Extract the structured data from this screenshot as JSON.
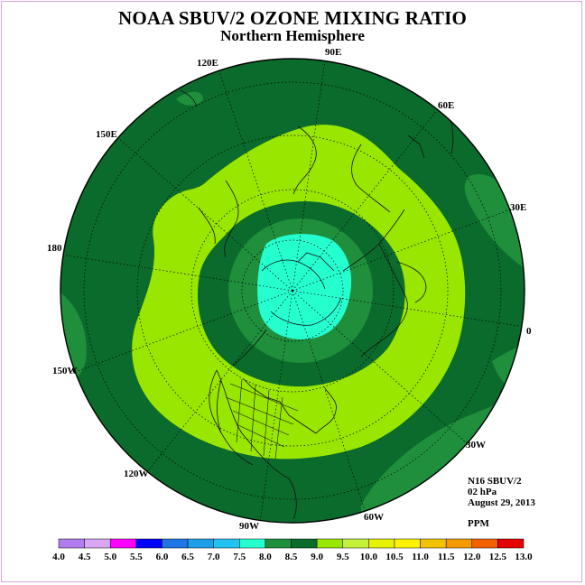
{
  "title": "NOAA SBUV/2 OZONE MIXING RATIO",
  "subtitle": "Northern Hemisphere",
  "info": {
    "instrument": "N16 SBUV/2",
    "level": "02 hPa",
    "date": "August 29, 2013",
    "units": "PPM"
  },
  "longitude_labels": [
    "120E",
    "90E",
    "60E",
    "150E",
    "30E",
    "180",
    "0",
    "150W",
    "30W",
    "120W",
    "60W",
    "90W"
  ],
  "colorbar": {
    "ticks": [
      "4.0",
      "4.5",
      "5.0",
      "5.5",
      "6.0",
      "6.5",
      "7.0",
      "7.5",
      "8.0",
      "8.5",
      "9.0",
      "9.5",
      "10.0",
      "10.5",
      "11.0",
      "11.5",
      "12.0",
      "12.5",
      "13.0"
    ],
    "colors": [
      "#b07cf0",
      "#d9a6f2",
      "#ff00ff",
      "#0000ff",
      "#1f74e6",
      "#1e9ee8",
      "#22c2f0",
      "#25ffd0",
      "#1f8f3c",
      "#0b6b2c",
      "#99e600",
      "#c4f23a",
      "#e6f200",
      "#fff200",
      "#f2c200",
      "#f29a00",
      "#f26000",
      "#e60000",
      "#8a5a3a"
    ]
  },
  "map_colors": {
    "level_8_5": "#0b6b2c",
    "level_8_0": "#1f8f3c",
    "level_9_0": "#99e600",
    "level_9_5": "#c4f23a",
    "level_7_5": "#25ffd0"
  }
}
